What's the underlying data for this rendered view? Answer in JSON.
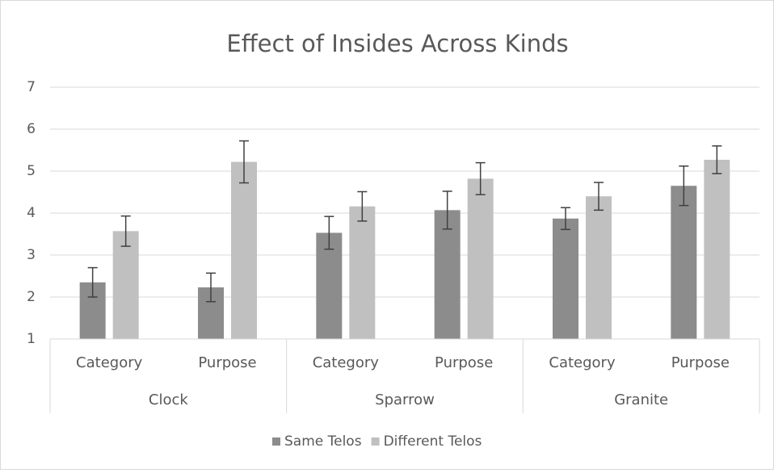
{
  "chart_data": {
    "type": "bar",
    "title": "Effect of Insides Across Kinds",
    "groups": [
      "Clock",
      "Sparrow",
      "Granite"
    ],
    "categories": [
      "Category",
      "Purpose",
      "Category",
      "Purpose",
      "Category",
      "Purpose"
    ],
    "series": [
      {
        "name": "Same Telos",
        "color": "#8c8c8c",
        "values": [
          2.35,
          2.23,
          3.53,
          4.07,
          3.87,
          4.65
        ],
        "errors": [
          0.35,
          0.34,
          0.39,
          0.45,
          0.26,
          0.47
        ]
      },
      {
        "name": "Different Telos",
        "color": "#c0c0c0",
        "values": [
          3.57,
          5.22,
          4.16,
          4.82,
          4.4,
          5.27
        ],
        "errors": [
          0.36,
          0.5,
          0.35,
          0.38,
          0.33,
          0.33
        ]
      }
    ],
    "ylim": [
      1,
      7
    ],
    "yticks": [
      1,
      2,
      3,
      4,
      5,
      6,
      7
    ],
    "grid": true,
    "legend": "bottom"
  }
}
